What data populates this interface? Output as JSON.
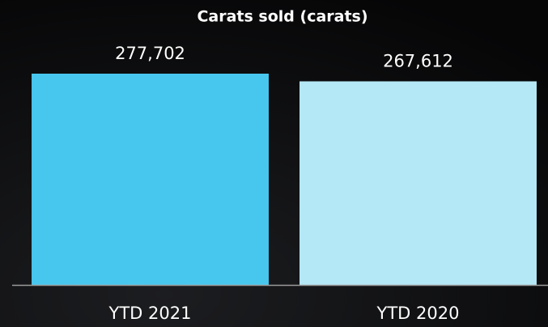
{
  "chart_data": {
    "type": "bar",
    "title": "Carats sold (carats)",
    "categories": [
      "YTD 2021",
      "YTD 2020"
    ],
    "values": [
      277702,
      267612
    ],
    "value_labels": [
      "277,702",
      "267,612"
    ],
    "colors": [
      "#48c7ee",
      "#b5e8f6"
    ]
  }
}
